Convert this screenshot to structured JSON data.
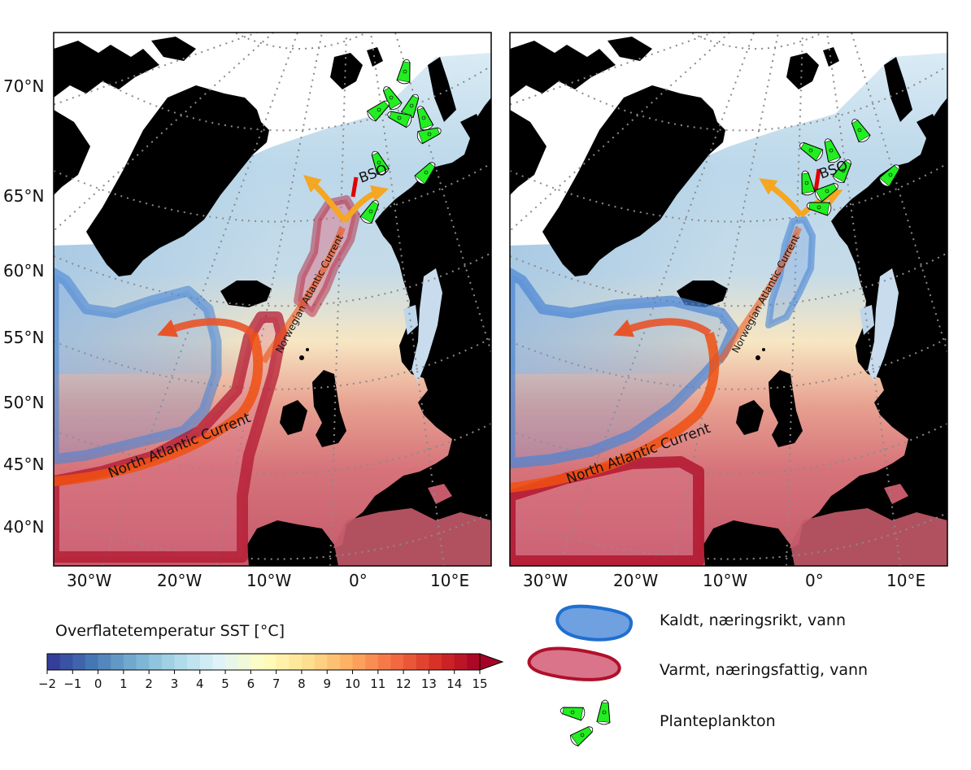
{
  "panels": [
    {
      "id": "left",
      "labels": {
        "north_atlantic_current": "North Atlantic Current",
        "norwegian_atlantic_current": "Norwegian Atlantic Current",
        "bso": "BSO"
      }
    },
    {
      "id": "right",
      "labels": {
        "north_atlantic_current": "North Atlantic Current",
        "norwegian_atlantic_current": "Norwegian Atlantic Current",
        "bso": "BSO"
      }
    }
  ],
  "lat_ticks": [
    "70°N",
    "65°N",
    "60°N",
    "55°N",
    "50°N",
    "45°N",
    "40°N"
  ],
  "lon_ticks": [
    "30°W",
    "20°W",
    "10°W",
    "0°",
    "10°E"
  ],
  "colorbar": {
    "title": "Overflatetemperatur SST [°C]",
    "min": -2,
    "max": 15,
    "ticks": [
      "−2",
      "−1",
      "0",
      "1",
      "2",
      "3",
      "4",
      "5",
      "6",
      "7",
      "8",
      "9",
      "10",
      "11",
      "12",
      "13",
      "14",
      "15"
    ],
    "colors": [
      "#313695",
      "#4575b4",
      "#74add1",
      "#abd9e9",
      "#e0f3f8",
      "#ffffbf",
      "#fee090",
      "#fdae61",
      "#f46d43",
      "#d73027",
      "#a50026"
    ]
  },
  "legend": {
    "cold_water": "Kaldt, næringsrikt, vann",
    "warm_water": "Varmt, næringsfattig, vann",
    "phytoplankton": "Planteplankton"
  },
  "colors": {
    "land": "#000000",
    "cold_water_fill": "#6fa0e0",
    "cold_water_stroke": "#1f6fd1",
    "warm_water_fill": "#d9748a",
    "warm_water_stroke": "#b0102a",
    "current": "#f05010",
    "current_branch": "#f5a623",
    "bso_line": "#e00000",
    "plankton": "#22ee22"
  }
}
